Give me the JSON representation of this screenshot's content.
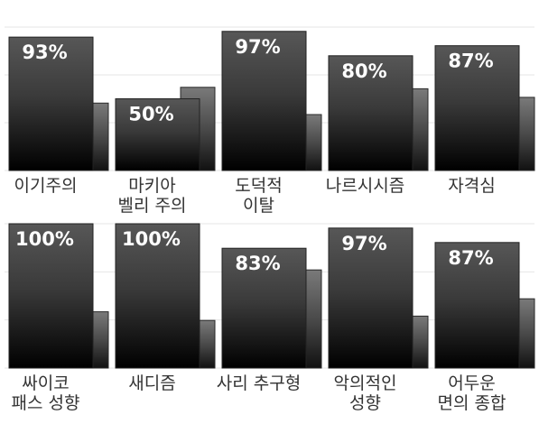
{
  "chart_data": {
    "type": "bar",
    "grid": true,
    "value_format": "{v}%",
    "ylim": [
      0,
      100
    ],
    "panels": [
      {
        "categories": [
          [
            "이기주의"
          ],
          [
            "마키아",
            "벨리 주의"
          ],
          [
            "도덕적",
            "이탈"
          ],
          [
            "나르시시즘"
          ],
          [
            "자격심"
          ]
        ],
        "values": [
          93,
          50,
          97,
          80,
          87
        ],
        "secondary_values": [
          47,
          58,
          39,
          57,
          51
        ]
      },
      {
        "categories": [
          [
            "싸이코",
            "패스 성향"
          ],
          [
            "새디즘"
          ],
          [
            "사리 추구형"
          ],
          [
            "악의적인",
            "성향"
          ],
          [
            "어두운",
            "면의 종합"
          ]
        ],
        "values": [
          100,
          100,
          83,
          97,
          87
        ],
        "secondary_values": [
          39,
          33,
          68,
          36,
          48
        ]
      }
    ]
  }
}
